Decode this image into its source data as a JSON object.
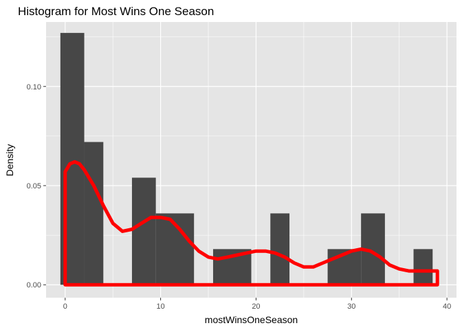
{
  "chart_data": {
    "type": "histogram",
    "title": "Histogram for Most Wins One Season",
    "xlabel": "mostWinsOneSeason",
    "ylabel": "Density",
    "xlim": [
      -2.0,
      41.0
    ],
    "ylim": [
      -0.0065,
      0.1325
    ],
    "x_ticks": [
      0,
      10,
      20,
      30,
      40
    ],
    "x_tick_labels": [
      "0",
      "10",
      "20",
      "30",
      "40"
    ],
    "y_ticks": [
      0.0,
      0.05,
      0.1
    ],
    "y_tick_labels": [
      "0.00",
      "0.05",
      "0.10"
    ],
    "grid": true,
    "bar_color": "#474747",
    "panel_color": "#e5e5e5",
    "grid_color": "#ffffff",
    "density_color": "#ff0000",
    "bins": [
      {
        "x0": -0.5,
        "x1": 2.0,
        "density": 0.127
      },
      {
        "x0": 2.0,
        "x1": 4.0,
        "density": 0.072
      },
      {
        "x0": 7.0,
        "x1": 9.5,
        "density": 0.054
      },
      {
        "x0": 9.5,
        "x1": 13.5,
        "density": 0.036
      },
      {
        "x0": 15.5,
        "x1": 19.5,
        "density": 0.018
      },
      {
        "x0": 21.5,
        "x1": 23.5,
        "density": 0.036
      },
      {
        "x0": 27.5,
        "x1": 31.0,
        "density": 0.018
      },
      {
        "x0": 31.0,
        "x1": 33.5,
        "density": 0.036
      },
      {
        "x0": 36.5,
        "x1": 38.5,
        "density": 0.018
      }
    ],
    "density_curve": {
      "x": [
        0,
        0.5,
        1,
        1.5,
        2,
        3,
        4,
        5,
        6,
        7,
        8,
        9,
        10,
        11,
        12,
        13,
        14,
        15,
        16,
        17,
        18,
        19,
        20,
        21,
        22,
        23,
        24,
        25,
        26,
        27,
        28,
        29,
        30,
        31,
        32,
        33,
        34,
        35,
        36,
        37,
        38,
        39
      ],
      "y": [
        0.057,
        0.061,
        0.062,
        0.061,
        0.058,
        0.05,
        0.04,
        0.031,
        0.027,
        0.028,
        0.031,
        0.034,
        0.034,
        0.033,
        0.028,
        0.022,
        0.017,
        0.014,
        0.013,
        0.014,
        0.015,
        0.016,
        0.017,
        0.017,
        0.016,
        0.014,
        0.011,
        0.009,
        0.009,
        0.011,
        0.013,
        0.015,
        0.017,
        0.018,
        0.017,
        0.014,
        0.01,
        0.008,
        0.007,
        0.007,
        0.007,
        0.007
      ],
      "closed_to_baseline": true
    }
  }
}
